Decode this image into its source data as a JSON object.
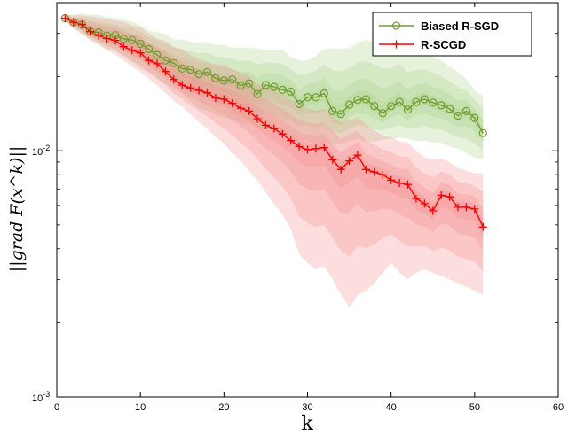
{
  "chart_data": {
    "type": "line",
    "xlabel": "k",
    "ylabel": "||grad F(x^k)||",
    "xlim": [
      0,
      60
    ],
    "ylim": [
      0.001,
      0.04
    ],
    "yscale": "log",
    "xticks": [
      "0",
      "10",
      "20",
      "30",
      "40",
      "50",
      "60"
    ],
    "yticks": [
      {
        "base": "10",
        "exp": "-2",
        "value": 0.01
      },
      {
        "base": "10",
        "exp": "-3",
        "value": 0.001
      }
    ],
    "legend_position": "top-right",
    "grid": false,
    "series": [
      {
        "name": "Biased R-SGD",
        "color": "#6f9e2e",
        "marker": "circle",
        "band_color": "#a8cf86",
        "x": [
          1,
          2,
          3,
          4,
          5,
          6,
          7,
          8,
          9,
          10,
          11,
          12,
          13,
          14,
          15,
          16,
          17,
          18,
          19,
          20,
          21,
          22,
          23,
          24,
          25,
          26,
          27,
          28,
          29,
          30,
          31,
          32,
          33,
          34,
          35,
          36,
          37,
          38,
          39,
          40,
          41,
          42,
          43,
          44,
          45,
          46,
          47,
          48,
          49,
          50,
          51
        ],
        "values": [
          0.0346,
          0.0333,
          0.0326,
          0.0306,
          0.0303,
          0.0294,
          0.0295,
          0.0285,
          0.0282,
          0.0272,
          0.0259,
          0.0245,
          0.0233,
          0.0227,
          0.0216,
          0.0214,
          0.0205,
          0.0209,
          0.0197,
          0.0193,
          0.0195,
          0.0184,
          0.0188,
          0.017,
          0.0185,
          0.0182,
          0.0177,
          0.0174,
          0.0155,
          0.0165,
          0.0165,
          0.0171,
          0.0145,
          0.0141,
          0.0154,
          0.0161,
          0.0162,
          0.0152,
          0.0142,
          0.0152,
          0.0158,
          0.0147,
          0.0158,
          0.0162,
          0.0157,
          0.0153,
          0.0148,
          0.0139,
          0.0145,
          0.0136,
          0.0118
        ],
        "band_upper": [
          0.0358,
          0.0356,
          0.0362,
          0.0357,
          0.0357,
          0.035,
          0.0346,
          0.034,
          0.0335,
          0.0323,
          0.0308,
          0.0304,
          0.0298,
          0.0283,
          0.0283,
          0.0278,
          0.0275,
          0.0277,
          0.0269,
          0.027,
          0.0262,
          0.0262,
          0.0263,
          0.026,
          0.0257,
          0.0257,
          0.0257,
          0.0241,
          0.0233,
          0.0233,
          0.0243,
          0.0259,
          0.0261,
          0.026,
          0.0261,
          0.0276,
          0.0282,
          0.0276,
          0.0271,
          0.0262,
          0.0275,
          0.0252,
          0.025,
          0.025,
          0.024,
          0.0233,
          0.022,
          0.0209,
          0.0196,
          0.0176,
          0.0167
        ],
        "band_lower": [
          0.0336,
          0.0317,
          0.0298,
          0.0281,
          0.0271,
          0.0258,
          0.0254,
          0.0242,
          0.023,
          0.0215,
          0.0208,
          0.0196,
          0.0187,
          0.0178,
          0.0171,
          0.016,
          0.0149,
          0.0145,
          0.0139,
          0.0137,
          0.0135,
          0.0129,
          0.0129,
          0.0124,
          0.0125,
          0.0121,
          0.0117,
          0.0115,
          0.0111,
          0.011,
          0.0106,
          0.0108,
          0.0106,
          0.0107,
          0.0109,
          0.0112,
          0.0109,
          0.0109,
          0.0111,
          0.0112,
          0.0113,
          0.0112,
          0.0109,
          0.011,
          0.0108,
          0.0108,
          0.0104,
          0.0102,
          0.0098,
          0.0094,
          0.0092
        ]
      },
      {
        "name": "R-SCGD",
        "color": "#ff0000",
        "marker": "plus",
        "band_color": "#f48a8a",
        "x": [
          1,
          2,
          3,
          4,
          5,
          6,
          7,
          8,
          9,
          10,
          11,
          12,
          13,
          14,
          15,
          16,
          17,
          18,
          19,
          20,
          21,
          22,
          23,
          24,
          25,
          26,
          27,
          28,
          29,
          30,
          31,
          32,
          33,
          34,
          35,
          36,
          37,
          38,
          39,
          40,
          41,
          42,
          43,
          44,
          45,
          46,
          47,
          48,
          49,
          50,
          51
        ],
        "values": [
          0.0346,
          0.0333,
          0.0326,
          0.0305,
          0.0294,
          0.0286,
          0.0281,
          0.0265,
          0.0256,
          0.025,
          0.0233,
          0.0226,
          0.021,
          0.0195,
          0.0185,
          0.018,
          0.0176,
          0.0172,
          0.0164,
          0.0162,
          0.0156,
          0.0149,
          0.0145,
          0.0135,
          0.0127,
          0.0123,
          0.0117,
          0.011,
          0.0104,
          0.0101,
          0.0102,
          0.0103,
          0.0092,
          0.0084,
          0.0091,
          0.0096,
          0.0084,
          0.0082,
          0.008,
          0.0076,
          0.0074,
          0.0073,
          0.0064,
          0.0061,
          0.0057,
          0.0066,
          0.0065,
          0.0059,
          0.0059,
          0.0058,
          0.0049
        ],
        "band_upper": [
          0.0358,
          0.0355,
          0.0355,
          0.0351,
          0.0348,
          0.0343,
          0.0338,
          0.0334,
          0.0323,
          0.0318,
          0.03,
          0.0286,
          0.0279,
          0.0265,
          0.0259,
          0.0245,
          0.0237,
          0.0228,
          0.0225,
          0.0223,
          0.0214,
          0.0207,
          0.0201,
          0.0187,
          0.0184,
          0.0176,
          0.0168,
          0.0161,
          0.0153,
          0.0149,
          0.0146,
          0.0148,
          0.0138,
          0.0131,
          0.0133,
          0.0137,
          0.0128,
          0.0121,
          0.0115,
          0.0114,
          0.0109,
          0.0108,
          0.01,
          0.0094,
          0.0092,
          0.0093,
          0.009,
          0.0085,
          0.0083,
          0.0081,
          0.0081
        ],
        "band_lower": [
          0.0336,
          0.0314,
          0.0299,
          0.0283,
          0.027,
          0.0257,
          0.0246,
          0.0234,
          0.022,
          0.0209,
          0.0196,
          0.0184,
          0.0172,
          0.016,
          0.0151,
          0.0141,
          0.0131,
          0.0123,
          0.0114,
          0.0107,
          0.0098,
          0.0091,
          0.0083,
          0.0076,
          0.0068,
          0.0061,
          0.0055,
          0.0048,
          0.0038,
          0.0035,
          0.0033,
          0.0034,
          0.003,
          0.0026,
          0.0023,
          0.0026,
          0.0027,
          0.0029,
          0.0032,
          0.0035,
          0.0032,
          0.003,
          0.0032,
          0.0033,
          0.0032,
          0.0031,
          0.003,
          0.0029,
          0.0028,
          0.0027,
          0.0026
        ]
      }
    ]
  }
}
